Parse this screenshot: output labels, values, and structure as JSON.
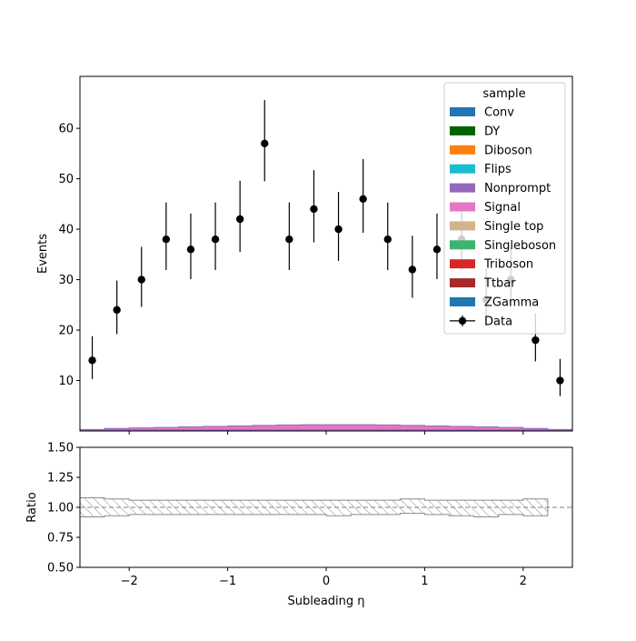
{
  "chart_data": [
    {
      "type": "histogram",
      "panel": "main",
      "ylabel": "Events",
      "yticks": [
        10,
        20,
        30,
        40,
        50,
        60
      ],
      "ylim": [
        0,
        70.3
      ],
      "xlim": [
        -2.5,
        2.5
      ],
      "bin_edges": [
        -2.5,
        -2.25,
        -2.0,
        -1.75,
        -1.5,
        -1.25,
        -1.0,
        -0.75,
        -0.5,
        -0.25,
        0.0,
        0.25,
        0.5,
        0.75,
        1.0,
        1.25,
        1.5,
        1.75,
        2.0,
        2.25,
        2.5
      ],
      "legend": {
        "title": "sample",
        "position": "upper right",
        "entries": [
          {
            "label": "Conv",
            "color": "#1f77b4",
            "kind": "patch"
          },
          {
            "label": "DY",
            "color": "#006400",
            "kind": "patch"
          },
          {
            "label": "Diboson",
            "color": "#ff7f0e",
            "kind": "patch"
          },
          {
            "label": "Flips",
            "color": "#17becf",
            "kind": "patch"
          },
          {
            "label": "Nonprompt",
            "color": "#9467bd",
            "kind": "patch"
          },
          {
            "label": "Signal",
            "color": "#e377c2",
            "kind": "patch"
          },
          {
            "label": "Single top",
            "color": "#d2b48c",
            "kind": "patch"
          },
          {
            "label": "Singleboson",
            "color": "#3cb371",
            "kind": "patch"
          },
          {
            "label": "Triboson",
            "color": "#d62728",
            "kind": "patch"
          },
          {
            "label": "Ttbar",
            "color": "#a52a2a",
            "kind": "patch"
          },
          {
            "label": "ZGamma",
            "color": "#1f77b4",
            "kind": "patch"
          },
          {
            "label": "Data",
            "color": "#000000",
            "kind": "errorbar"
          }
        ]
      },
      "stack": {
        "name": "Signal",
        "color": "#e377c2",
        "edge_color": "#9467bd",
        "values": [
          0.3,
          0.5,
          0.6,
          0.7,
          0.8,
          0.9,
          1.0,
          1.1,
          1.2,
          1.25,
          1.25,
          1.25,
          1.2,
          1.1,
          1.0,
          0.9,
          0.8,
          0.7,
          0.5,
          0.3
        ]
      },
      "data_points": {
        "name": "Data",
        "x": [
          -2.375,
          -2.125,
          -1.875,
          -1.625,
          -1.375,
          -1.125,
          -0.875,
          -0.625,
          -0.375,
          -0.125,
          0.125,
          0.375,
          0.625,
          0.875,
          1.125,
          1.375,
          1.625,
          1.875,
          2.125,
          2.375
        ],
        "y": [
          14,
          24,
          30,
          38,
          36,
          38,
          42,
          57,
          38,
          44,
          40,
          46,
          38,
          32,
          36,
          38,
          26,
          30,
          18,
          10
        ],
        "yerr_up": [
          4.8,
          5.8,
          6.5,
          7.3,
          7.1,
          7.3,
          7.6,
          8.6,
          7.3,
          7.7,
          7.4,
          7.9,
          7.3,
          6.7,
          7.1,
          7.3,
          6.2,
          6.5,
          5.3,
          4.3
        ],
        "yerr_down": [
          3.7,
          4.8,
          5.4,
          6.1,
          5.9,
          6.1,
          6.5,
          7.5,
          6.1,
          6.6,
          6.3,
          6.7,
          6.1,
          5.6,
          5.9,
          6.1,
          5.1,
          5.4,
          4.2,
          3.1
        ]
      }
    },
    {
      "type": "ratio",
      "panel": "ratio",
      "xlabel": "Subleading η",
      "ylabel": "Ratio",
      "ylim": [
        0.5,
        1.5
      ],
      "yticks": [
        "0.50",
        "0.75",
        "1.00",
        "1.25",
        "1.50"
      ],
      "xlim": [
        -2.5,
        2.5
      ],
      "xticks": [
        -2,
        -1,
        0,
        1,
        2
      ],
      "reference_line": 1.0,
      "uncertainty_band": {
        "bin_edges": [
          -2.5,
          -2.25,
          -2.0,
          -1.75,
          -1.5,
          -1.25,
          -1.0,
          -0.75,
          -0.5,
          -0.25,
          0.0,
          0.25,
          0.5,
          0.75,
          1.0,
          1.25,
          1.5,
          1.75,
          2.0,
          2.25
        ],
        "low": [
          0.92,
          0.93,
          0.94,
          0.94,
          0.94,
          0.94,
          0.94,
          0.94,
          0.94,
          0.94,
          0.93,
          0.94,
          0.94,
          0.95,
          0.94,
          0.93,
          0.92,
          0.94,
          0.93
        ],
        "high": [
          1.08,
          1.07,
          1.06,
          1.06,
          1.06,
          1.06,
          1.06,
          1.06,
          1.06,
          1.06,
          1.06,
          1.06,
          1.06,
          1.07,
          1.06,
          1.06,
          1.06,
          1.06,
          1.07
        ]
      }
    }
  ]
}
